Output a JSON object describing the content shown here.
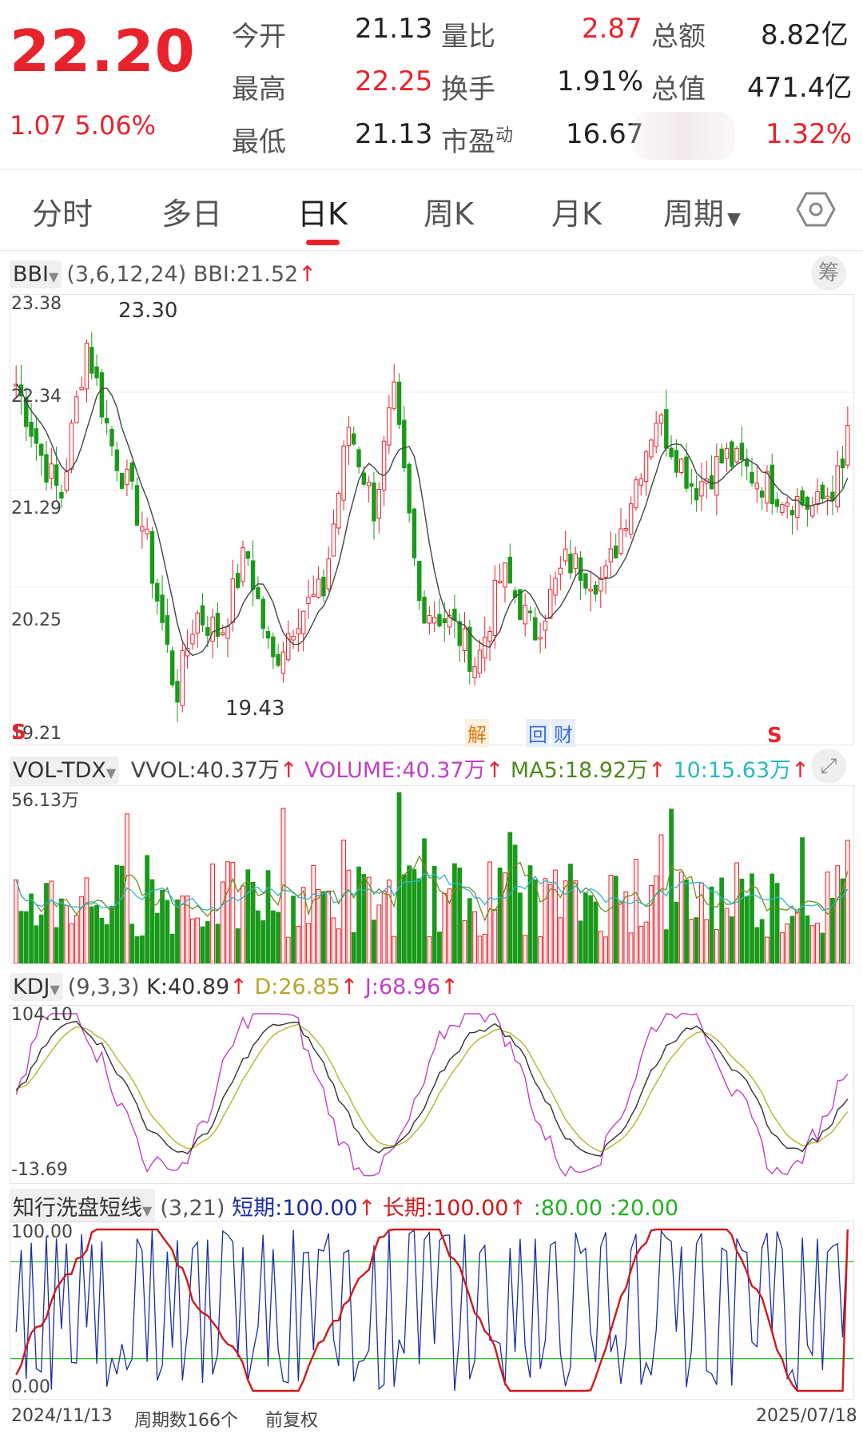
{
  "quote": {
    "price": "22.20",
    "change": "1.07",
    "change_pct": "5.06%",
    "open_label": "今开",
    "open_value": "21.13",
    "high_label": "最高",
    "high_value": "22.25",
    "low_label": "最低",
    "low_value": "21.13",
    "volume_ratio_label": "量比",
    "volume_ratio_value": "2.87",
    "turnover_label": "换手",
    "turnover_value": "1.91%",
    "pe_label": "市盈",
    "pe_sup": "动",
    "pe_value": "16.67",
    "amount_label": "总额",
    "amount_value": "8.82亿",
    "market_cap_label": "总值",
    "market_cap_value": "471.4亿",
    "extra_value": "1.32%"
  },
  "tabs": [
    "分时",
    "多日",
    "日K",
    "周K",
    "月K",
    "周期"
  ],
  "active_tab": "日K",
  "bbi": {
    "name": "BBI",
    "params": "(3,6,12,24)",
    "value_label": "BBI:",
    "value": "21.52",
    "chip_button": "筹",
    "y_ticks": [
      "23.38",
      "22.34",
      "21.29",
      "20.25",
      "19.21"
    ],
    "high_mark": "23.30",
    "low_mark": "19.43",
    "markers": [
      "S",
      "S"
    ],
    "event_jie": "解",
    "event_hui": "回",
    "event_cai": "财"
  },
  "vol": {
    "name": "VOL-TDX",
    "vvol_label": "VVOL:",
    "vvol_value": "40.37万",
    "volume_label": "VOLUME:",
    "volume_value": "40.37万",
    "ma5_label": "MA5:",
    "ma5_value": "18.92万",
    "ma10_label": "10:",
    "ma10_value": "15.63万",
    "y_top": "56.13万"
  },
  "kdj": {
    "name": "KDJ",
    "params": "(9,3,3)",
    "k_label": "K:",
    "k_value": "40.89",
    "d_label": "D:",
    "d_value": "26.85",
    "j_label": "J:",
    "j_value": "68.96",
    "y_top": "104.10",
    "y_bottom": "-13.69"
  },
  "zx": {
    "name": "知行洗盘短线",
    "params": "(3,21)",
    "short_label": "短期:",
    "short_value": "100.00",
    "long_label": "长期:",
    "long_value": "100.00",
    "line1": ":80.00",
    "line2": ":20.00",
    "y_top": "100.00",
    "y_bottom": "0.00"
  },
  "footer": {
    "start_date": "2024/11/13",
    "period_count": "周期数166个",
    "adjust": "前复权",
    "end_date": "2025/07/18"
  },
  "colors": {
    "up": "#e8232c",
    "down": "#1a9a1a",
    "ma5": "#6b8e23",
    "ma10": "#2ab7c9",
    "k": "#333333",
    "d": "#b5b52a",
    "j": "#c040c8",
    "short": "#1a2fa0",
    "long": "#d01a1a",
    "line80": "#22c022"
  }
}
